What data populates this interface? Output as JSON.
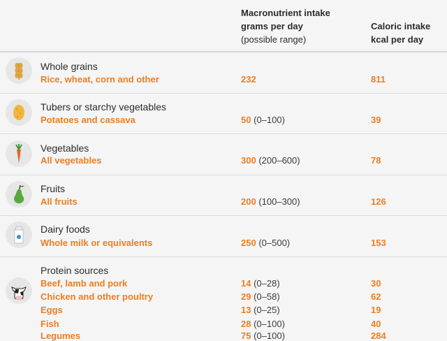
{
  "header": {
    "col_amount_line1": "Macronutrient intake",
    "col_amount_line2": "grams per day",
    "col_amount_line3": "(possible range)",
    "col_kcal_line1": "Caloric intake",
    "col_kcal_line2": "kcal per day"
  },
  "rows": [
    {
      "category": "Whole grains",
      "icon": "wheat-icon",
      "items": [
        {
          "label": "Rice, wheat, corn and other",
          "grams": "232",
          "range": "",
          "kcal": "811"
        }
      ]
    },
    {
      "category": "Tubers or starchy vegetables",
      "icon": "potato-icon",
      "items": [
        {
          "label": "Potatoes and cassava",
          "grams": "50",
          "range": "(0–100)",
          "kcal": "39"
        }
      ]
    },
    {
      "category": "Vegetables",
      "icon": "carrot-icon",
      "items": [
        {
          "label": "All vegetables",
          "grams": "300",
          "range": "(200–600)",
          "kcal": "78"
        }
      ]
    },
    {
      "category": "Fruits",
      "icon": "pear-icon",
      "items": [
        {
          "label": "All fruits",
          "grams": "200",
          "range": "(100–300)",
          "kcal": "126"
        }
      ]
    },
    {
      "category": "Dairy foods",
      "icon": "milk-carton-icon",
      "items": [
        {
          "label": "Whole milk or equivalents",
          "grams": "250",
          "range": "(0–500)",
          "kcal": "153"
        }
      ]
    },
    {
      "category": "Protein sources",
      "icon": "cow-icon",
      "items": [
        {
          "label": "Beef, lamb and pork",
          "grams": "14",
          "range": "(0–28)",
          "kcal": "30"
        },
        {
          "label": "Chicken and other poultry",
          "grams": "29",
          "range": "(0–58)",
          "kcal": "62"
        },
        {
          "label": "Eggs",
          "grams": "13",
          "range": "(0–25)",
          "kcal": "19"
        },
        {
          "label": "Fish",
          "grams": "28",
          "range": "(0–100)",
          "kcal": "40"
        },
        {
          "label": "Legumes",
          "grams": "75",
          "range": "(0–100)",
          "kcal": "284"
        }
      ]
    }
  ]
}
